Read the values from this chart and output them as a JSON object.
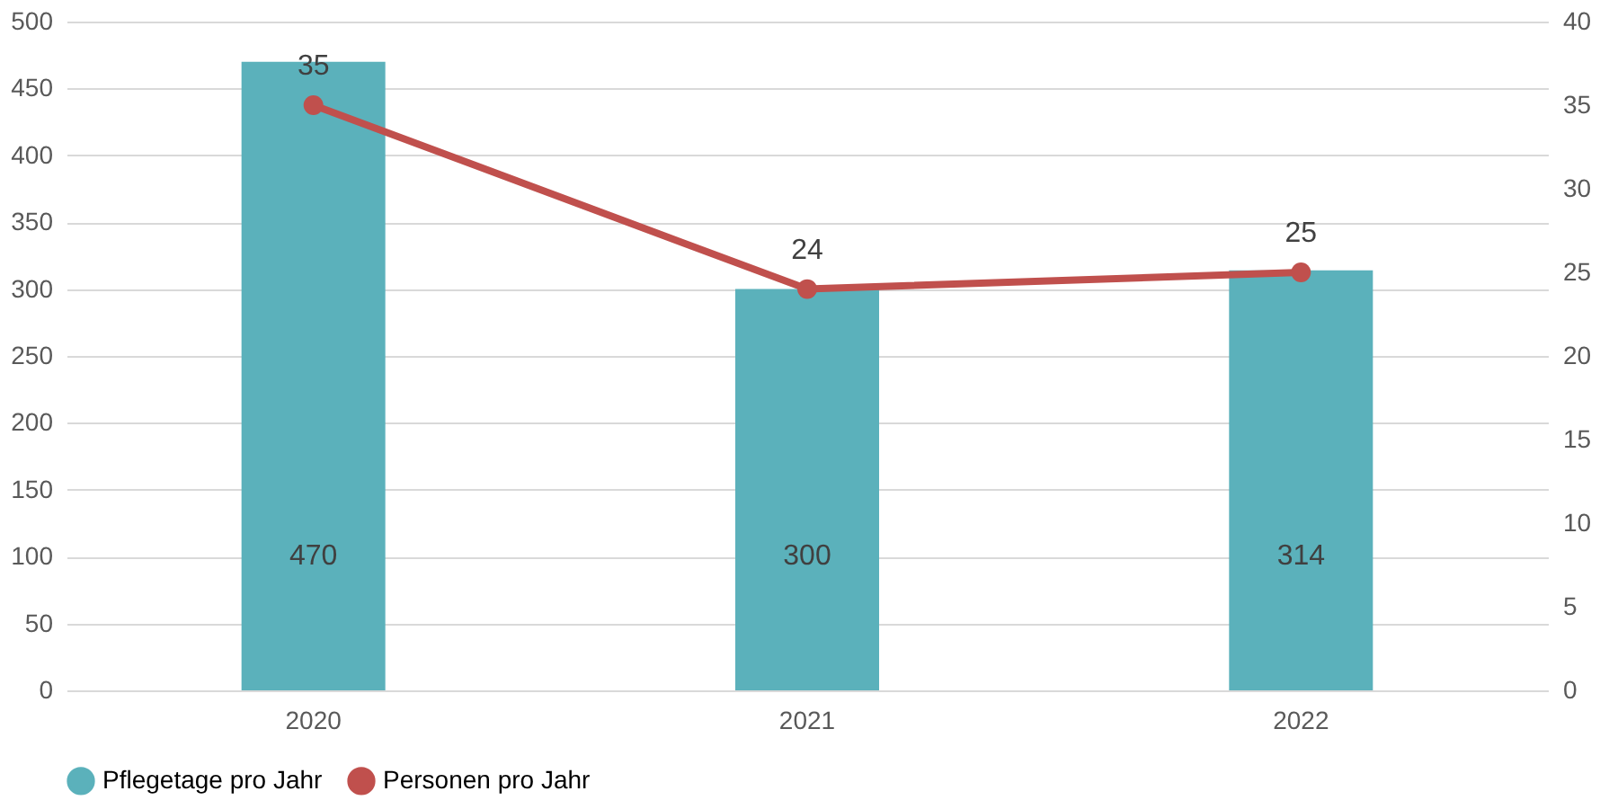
{
  "chart_data": {
    "type": "bar",
    "categories": [
      "2020",
      "2021",
      "2022"
    ],
    "series": [
      {
        "name": "Pflegetage pro Jahr",
        "color": "#5bb1bb",
        "values": [
          470,
          300,
          314
        ]
      },
      {
        "name": "Personen pro Jahr",
        "color": "#c0504d",
        "values": [
          35,
          24,
          25
        ],
        "type": "line",
        "axis": "y2",
        "marker": "circle"
      }
    ],
    "ylim": [
      0,
      500
    ],
    "yticks": [
      0,
      50,
      100,
      150,
      200,
      250,
      300,
      350,
      400,
      450,
      500
    ],
    "y2lim": [
      0,
      40
    ],
    "y2ticks": [
      0,
      5,
      10,
      15,
      20,
      25,
      30,
      35,
      40
    ],
    "data_labels": true,
    "grid": "y",
    "legend": "bottom"
  }
}
